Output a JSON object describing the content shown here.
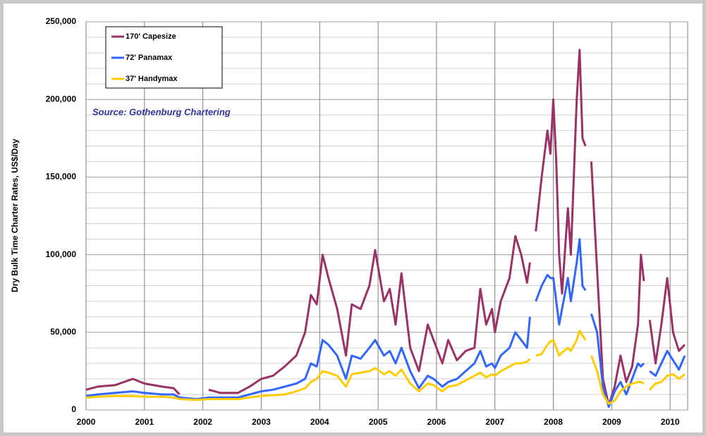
{
  "chart_data": {
    "type": "line",
    "y_label": "Dry Bulk Time Charter Rates, US$/Day",
    "annotation": "Source: Gothenburg Chartering",
    "xlim": [
      2000,
      2010.3
    ],
    "xticks": [
      2000,
      2001,
      2002,
      2003,
      2004,
      2005,
      2006,
      2007,
      2008,
      2009,
      2010
    ],
    "ylim": [
      0,
      250000
    ],
    "yticks": [
      0,
      {
        "value": 50000,
        "label": "50,000"
      },
      {
        "value": 100000,
        "label": "100,000"
      },
      {
        "value": 150000,
        "label": "150,000"
      },
      {
        "value": 200000,
        "label": "200,000"
      },
      {
        "value": 250000,
        "label": "250,000"
      }
    ],
    "y_minor_ticks": [
      10000,
      20000,
      30000,
      40000,
      60000,
      70000,
      80000,
      90000,
      110000,
      120000,
      130000,
      140000,
      160000,
      170000,
      180000,
      190000,
      210000,
      220000,
      230000,
      240000
    ],
    "grid": true,
    "legend": "upper left",
    "x": [
      2000.0,
      2000.2,
      2000.5,
      2000.8,
      2001.0,
      2001.3,
      2001.5,
      2001.6,
      2001.9,
      2002.1,
      2002.3,
      2002.6,
      2002.8,
      2003.0,
      2003.2,
      2003.4,
      2003.6,
      2003.75,
      2003.85,
      2003.95,
      2004.05,
      2004.15,
      2004.3,
      2004.45,
      2004.55,
      2004.7,
      2004.85,
      2004.95,
      2005.1,
      2005.2,
      2005.3,
      2005.4,
      2005.55,
      2005.7,
      2005.85,
      2005.95,
      2006.1,
      2006.2,
      2006.35,
      2006.5,
      2006.65,
      2006.75,
      2006.85,
      2006.95,
      2007.0,
      2007.1,
      2007.25,
      2007.35,
      2007.45,
      2007.55,
      2007.6,
      2007.65,
      2007.7,
      2007.8,
      2007.9,
      2007.95,
      2008.0,
      2008.05,
      2008.1,
      2008.15,
      2008.25,
      2008.3,
      2008.4,
      2008.45,
      2008.5,
      2008.55,
      2008.6,
      2008.65,
      2008.75,
      2008.85,
      2008.95,
      2009.05,
      2009.15,
      2009.25,
      2009.35,
      2009.45,
      2009.5,
      2009.55,
      2009.6,
      2009.65,
      2009.75,
      2009.85,
      2009.95,
      2010.05,
      2010.15,
      2010.25
    ],
    "series": [
      {
        "name": "170' Capesize",
        "color": "#993366",
        "values": [
          13000,
          15000,
          16000,
          20000,
          17000,
          15000,
          14000,
          10000,
          null,
          13000,
          11000,
          11000,
          15000,
          20000,
          22000,
          28000,
          35000,
          50000,
          74000,
          68000,
          100000,
          85000,
          65000,
          35000,
          68000,
          65000,
          80000,
          103000,
          70000,
          78000,
          55000,
          88000,
          40000,
          25000,
          55000,
          45000,
          30000,
          45000,
          32000,
          38000,
          40000,
          78000,
          55000,
          65000,
          50000,
          70000,
          85000,
          112000,
          100000,
          82000,
          95000,
          null,
          115000,
          150000,
          180000,
          165000,
          200000,
          160000,
          100000,
          75000,
          130000,
          100000,
          200000,
          232000,
          175000,
          170000,
          null,
          160000,
          90000,
          20000,
          3000,
          15000,
          35000,
          18000,
          28000,
          55000,
          100000,
          83000,
          null,
          58000,
          30000,
          55000,
          85000,
          50000,
          38000,
          42000
        ]
      },
      {
        "name": "72' Panamax",
        "color": "#3366ff",
        "values": [
          9000,
          10000,
          11000,
          12000,
          11000,
          10000,
          10000,
          8000,
          7000,
          8000,
          8000,
          8000,
          10000,
          12000,
          13000,
          15000,
          17000,
          20000,
          30000,
          28000,
          45000,
          42000,
          35000,
          20000,
          35000,
          33000,
          40000,
          45000,
          35000,
          38000,
          30000,
          40000,
          25000,
          14000,
          22000,
          20000,
          15000,
          18000,
          20000,
          25000,
          30000,
          38000,
          28000,
          30000,
          27000,
          35000,
          40000,
          50000,
          45000,
          40000,
          60000,
          null,
          70000,
          80000,
          87000,
          85000,
          85000,
          70000,
          55000,
          65000,
          85000,
          70000,
          95000,
          110000,
          80000,
          77000,
          null,
          62000,
          50000,
          15000,
          2000,
          12000,
          18000,
          10000,
          20000,
          30000,
          28000,
          30000,
          null,
          25000,
          22000,
          30000,
          38000,
          32000,
          26000,
          35000
        ]
      },
      {
        "name": "37' Handymax",
        "color": "#ffcc00",
        "values": [
          8000,
          8500,
          9000,
          9000,
          8500,
          8500,
          8000,
          7000,
          6500,
          7000,
          7000,
          7000,
          8000,
          9000,
          9500,
          10000,
          12000,
          14000,
          18000,
          20000,
          25000,
          24000,
          22000,
          15000,
          23000,
          24000,
          25000,
          27000,
          23000,
          25000,
          22000,
          26000,
          17000,
          12000,
          17000,
          16000,
          12000,
          15000,
          16000,
          19000,
          22000,
          24000,
          21000,
          23000,
          22000,
          25000,
          28000,
          30000,
          30000,
          31000,
          33000,
          null,
          35000,
          36000,
          42000,
          44000,
          45000,
          40000,
          35000,
          37000,
          40000,
          38000,
          45000,
          51000,
          48000,
          45000,
          null,
          35000,
          25000,
          10000,
          4000,
          6000,
          12000,
          15000,
          17000,
          18000,
          18000,
          17000,
          null,
          13000,
          17000,
          18000,
          22000,
          23000,
          20000,
          23000
        ]
      }
    ]
  }
}
